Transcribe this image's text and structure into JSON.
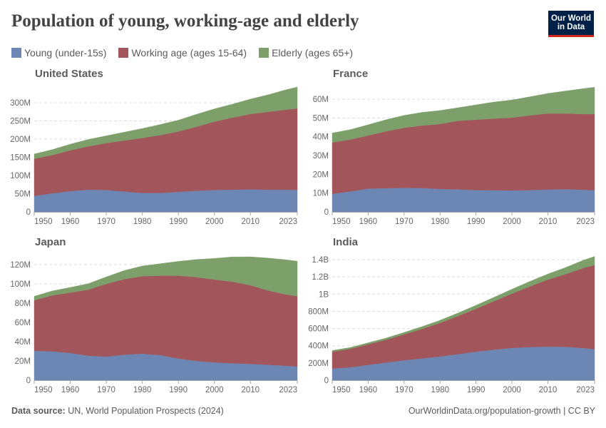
{
  "title": "Population of young, working-age and elderly",
  "logo": {
    "line1": "Our World",
    "line2": "in Data"
  },
  "footer": {
    "source_label": "Data source:",
    "source_text": "UN, World Population Prospects (2024)",
    "link": "OurWorldinData.org/population-growth | CC BY"
  },
  "chart_data": [
    {
      "type": "area",
      "stacked": true,
      "title": "United States",
      "grid": true,
      "legend": "top-left",
      "x": [
        1950,
        1955,
        1960,
        1965,
        1970,
        1975,
        1980,
        1985,
        1990,
        1995,
        2000,
        2005,
        2010,
        2015,
        2020,
        2023
      ],
      "xlim": [
        1950,
        2023
      ],
      "ylim": [
        0,
        343000000
      ],
      "x_ticks": [
        1950,
        1960,
        1970,
        1980,
        1990,
        2000,
        2010,
        2023
      ],
      "y_ticks": [
        {
          "value": 0,
          "label": "0"
        },
        {
          "value": 50000000,
          "label": "50M"
        },
        {
          "value": 100000000,
          "label": "100M"
        },
        {
          "value": 150000000,
          "label": "150M"
        },
        {
          "value": 200000000,
          "label": "200M"
        },
        {
          "value": 250000000,
          "label": "250M"
        },
        {
          "value": 300000000,
          "label": "300M"
        }
      ],
      "series": [
        {
          "name": "Young (under-15s)",
          "color": "#6D87B4",
          "values": [
            44000000,
            51000000,
            57000000,
            61000000,
            60000000,
            56000000,
            52000000,
            52000000,
            55000000,
            58000000,
            60000000,
            61000000,
            62000000,
            61000000,
            61000000,
            60000000
          ]
        },
        {
          "name": "Working age (ages 15-64)",
          "color": "#A2565C",
          "values": [
            102000000,
            105000000,
            112000000,
            119000000,
            129000000,
            140000000,
            151000000,
            159000000,
            166000000,
            176000000,
            188000000,
            198000000,
            207000000,
            214000000,
            220000000,
            224000000
          ]
        },
        {
          "name": "Elderly (ages 65+)",
          "color": "#7DA06B",
          "values": [
            13000000,
            15000000,
            17000000,
            19000000,
            20000000,
            23000000,
            26000000,
            29000000,
            31000000,
            34000000,
            35000000,
            37000000,
            41000000,
            47000000,
            55000000,
            59000000
          ]
        }
      ]
    },
    {
      "type": "area",
      "stacked": true,
      "title": "France",
      "grid": true,
      "legend": "top-left",
      "x": [
        1950,
        1955,
        1960,
        1965,
        1970,
        1975,
        1980,
        1985,
        1990,
        1995,
        2000,
        2005,
        2010,
        2015,
        2020,
        2023
      ],
      "xlim": [
        1950,
        2023
      ],
      "ylim": [
        0,
        66500000
      ],
      "x_ticks": [
        1950,
        1960,
        1970,
        1980,
        1990,
        2000,
        2010,
        2023
      ],
      "y_ticks": [
        {
          "value": 0,
          "label": "0"
        },
        {
          "value": 10000000,
          "label": "10M"
        },
        {
          "value": 20000000,
          "label": "20M"
        },
        {
          "value": 30000000,
          "label": "30M"
        },
        {
          "value": 40000000,
          "label": "40M"
        },
        {
          "value": 50000000,
          "label": "50M"
        },
        {
          "value": 60000000,
          "label": "60M"
        }
      ],
      "series": [
        {
          "name": "Young (under-15s)",
          "color": "#6D87B4",
          "values": [
            9600000,
            10900000,
            12400000,
            12600000,
            12800000,
            12700000,
            12200000,
            12000000,
            11600000,
            11500000,
            11400000,
            11600000,
            11900000,
            12100000,
            11800000,
            11500000
          ]
        },
        {
          "name": "Working age (ages 15-64)",
          "color": "#A2565C",
          "values": [
            27400000,
            27600000,
            28300000,
            30300000,
            32000000,
            33300000,
            34600000,
            36500000,
            37500000,
            38200000,
            38800000,
            39800000,
            40500000,
            40300000,
            40300000,
            40600000
          ]
        },
        {
          "name": "Elderly (ages 65+)",
          "color": "#7DA06B",
          "values": [
            5000000,
            5300000,
            5700000,
            6200000,
            6600000,
            7000000,
            7200000,
            7000000,
            7900000,
            8800000,
            9400000,
            9900000,
            10700000,
            12000000,
            13600000,
            14300000
          ]
        }
      ]
    },
    {
      "type": "area",
      "stacked": true,
      "title": "Japan",
      "grid": true,
      "legend": "top-left",
      "x": [
        1950,
        1955,
        1960,
        1965,
        1970,
        1975,
        1980,
        1985,
        1990,
        1995,
        2000,
        2005,
        2010,
        2015,
        2020,
        2023
      ],
      "xlim": [
        1950,
        2023
      ],
      "ylim": [
        0,
        129600000
      ],
      "x_ticks": [
        1950,
        1960,
        1970,
        1980,
        1990,
        2000,
        2010,
        2023
      ],
      "y_ticks": [
        {
          "value": 0,
          "label": "0"
        },
        {
          "value": 20000000,
          "label": "20M"
        },
        {
          "value": 40000000,
          "label": "40M"
        },
        {
          "value": 60000000,
          "label": "60M"
        },
        {
          "value": 80000000,
          "label": "80M"
        },
        {
          "value": 100000000,
          "label": "100M"
        },
        {
          "value": 120000000,
          "label": "120M"
        }
      ],
      "series": [
        {
          "name": "Young (under-15s)",
          "color": "#6D87B4",
          "values": [
            30500000,
            30000000,
            28200000,
            25500000,
            24500000,
            26500000,
            27500000,
            26000000,
            22500000,
            20000000,
            18500000,
            17600000,
            16900000,
            16000000,
            15000000,
            14200000
          ]
        },
        {
          "name": "Working age (ages 15-64)",
          "color": "#A2565C",
          "values": [
            52500000,
            58000000,
            62800000,
            68500000,
            75500000,
            78500000,
            80500000,
            82500000,
            86000000,
            87000000,
            86000000,
            84700000,
            81700000,
            77000000,
            74000000,
            73000000
          ]
        },
        {
          "name": "Elderly (ages 65+)",
          "color": "#7DA06B",
          "values": [
            4100000,
            4700000,
            5400000,
            6200000,
            7300000,
            8900000,
            10600000,
            12500000,
            14900000,
            18300000,
            22000000,
            25700000,
            29500000,
            33800000,
            36000000,
            36400000
          ]
        }
      ]
    },
    {
      "type": "area",
      "stacked": true,
      "title": "India",
      "grid": true,
      "legend": "top-left",
      "x": [
        1950,
        1955,
        1960,
        1965,
        1970,
        1975,
        1980,
        1985,
        1990,
        1995,
        2000,
        2005,
        2010,
        2015,
        2020,
        2023
      ],
      "xlim": [
        1950,
        2023
      ],
      "ylim": [
        0,
        1450000000
      ],
      "x_ticks": [
        1950,
        1960,
        1970,
        1980,
        1990,
        2000,
        2010,
        2023
      ],
      "y_ticks": [
        {
          "value": 0,
          "label": "0"
        },
        {
          "value": 200000000,
          "label": "200M"
        },
        {
          "value": 400000000,
          "label": "400M"
        },
        {
          "value": 600000000,
          "label": "600M"
        },
        {
          "value": 800000000,
          "label": "800M"
        },
        {
          "value": 1000000000,
          "label": "1B"
        },
        {
          "value": 1200000000,
          "label": "1.2B"
        },
        {
          "value": 1400000000,
          "label": "1.4B"
        }
      ],
      "series": [
        {
          "name": "Young (under-15s)",
          "color": "#6D87B4",
          "values": [
            135000000,
            150000000,
            178000000,
            205000000,
            232000000,
            253000000,
            276000000,
            303000000,
            331000000,
            355000000,
            375000000,
            385000000,
            390000000,
            388000000,
            373000000,
            360000000
          ]
        },
        {
          "name": "Working age (ages 15-64)",
          "color": "#A2565C",
          "values": [
            197000000,
            214000000,
            239000000,
            265000000,
            300000000,
            343000000,
            389000000,
            443000000,
            499000000,
            563000000,
            631000000,
            705000000,
            778000000,
            845000000,
            932000000,
            978000000
          ]
        },
        {
          "name": "Elderly (ages 65+)",
          "color": "#7DA06B",
          "values": [
            14000000,
            16000000,
            18000000,
            20000000,
            23000000,
            27000000,
            31000000,
            35000000,
            40000000,
            45000000,
            51000000,
            58000000,
            66000000,
            77000000,
            91000000,
            100000000
          ]
        }
      ]
    }
  ]
}
